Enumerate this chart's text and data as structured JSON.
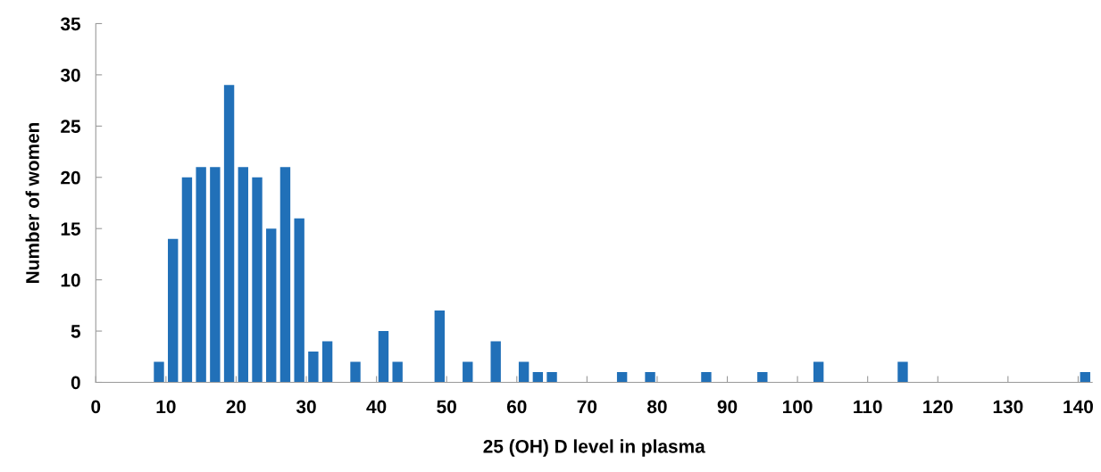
{
  "chart_data": {
    "type": "bar",
    "xlabel": "25 (OH) D level in plasma",
    "ylabel": "Number of women",
    "x": [
      9,
      11,
      13,
      15,
      17,
      19,
      21,
      23,
      25,
      27,
      29,
      31,
      33,
      37,
      41,
      43,
      49,
      53,
      57,
      61,
      63,
      65,
      75,
      79,
      87,
      95,
      103,
      115,
      141
    ],
    "values": [
      2,
      14,
      20,
      21,
      21,
      29,
      21,
      20,
      15,
      21,
      16,
      3,
      4,
      2,
      5,
      2,
      7,
      2,
      4,
      2,
      1,
      1,
      1,
      1,
      1,
      1,
      2,
      2,
      1
    ],
    "color": "#2170b8",
    "xlim": [
      0,
      142
    ],
    "xticks": [
      0,
      10,
      20,
      30,
      40,
      50,
      60,
      70,
      80,
      90,
      100,
      110,
      120,
      130,
      140
    ],
    "ylim": [
      0,
      35
    ],
    "yticks": [
      0,
      5,
      10,
      15,
      20,
      25,
      30,
      35
    ],
    "grid": false,
    "legend": false
  }
}
